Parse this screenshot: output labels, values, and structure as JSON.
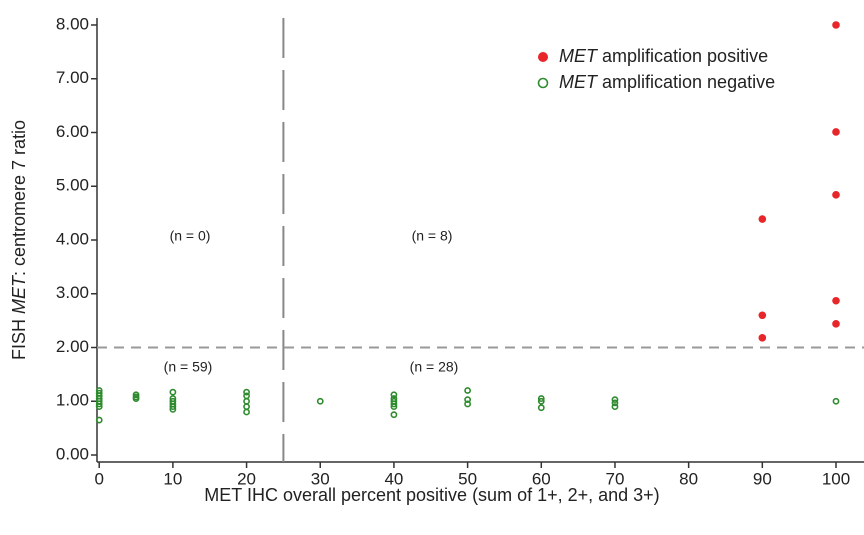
{
  "chart_data": {
    "type": "scatter",
    "xlabel": "MET IHC  overall percent positive (sum of 1+, 2+, and 3+)",
    "ylabel": [
      "FISH ",
      "MET",
      ": centromere 7 ratio"
    ],
    "xlim": [
      -0.3,
      103.8
    ],
    "ylim": [
      -0.13,
      8.13
    ],
    "xticks": [
      0,
      10,
      20,
      30,
      40,
      50,
      60,
      70,
      80,
      90,
      100
    ],
    "yticks": [
      {
        "value": 0,
        "label": "0.00"
      },
      {
        "value": 1,
        "label": "1.00"
      },
      {
        "value": 2,
        "label": "2.00"
      },
      {
        "value": 3,
        "label": "3.00"
      },
      {
        "value": 4,
        "label": "4.00"
      },
      {
        "value": 5,
        "label": "5.00"
      },
      {
        "value": 6,
        "label": "6.00"
      },
      {
        "value": 7,
        "label": "7.00"
      },
      {
        "value": 8,
        "label": "8.00"
      }
    ],
    "reference_lines": {
      "x": 25,
      "y": 2
    },
    "annotations": [
      "(n = 0)",
      "(n = 8)",
      "(n = 59)",
      "(n = 28)"
    ],
    "legend": "upper right",
    "series": [
      {
        "name": "MET amplification positive",
        "color": "#e8262a",
        "marker": "filled",
        "x": [
          90,
          90,
          90,
          100,
          100,
          100,
          100,
          100
        ],
        "values": [
          4.39,
          2.6,
          2.18,
          8.0,
          6.01,
          4.84,
          2.87,
          2.44
        ]
      },
      {
        "name": "MET amplification negative",
        "color": "#2e8b2e",
        "marker": "open",
        "x": [
          0,
          0,
          0,
          0,
          0,
          0,
          0,
          0,
          5,
          5,
          5,
          10,
          10,
          10,
          10,
          10,
          10,
          20,
          20,
          20,
          20,
          20,
          30,
          40,
          40,
          40,
          40,
          40,
          40,
          50,
          50,
          50,
          60,
          60,
          60,
          70,
          70,
          70,
          100
        ],
        "values": [
          1.2,
          1.15,
          1.1,
          1.05,
          1.0,
          0.95,
          0.9,
          0.65,
          1.12,
          1.08,
          1.05,
          1.17,
          1.05,
          1.0,
          0.95,
          0.9,
          0.85,
          1.17,
          1.1,
          1.0,
          0.9,
          0.8,
          1.0,
          1.12,
          1.05,
          1.0,
          0.95,
          0.9,
          0.75,
          1.2,
          1.03,
          0.95,
          1.05,
          1.0,
          0.88,
          1.03,
          0.97,
          0.9,
          1.0
        ]
      }
    ]
  }
}
